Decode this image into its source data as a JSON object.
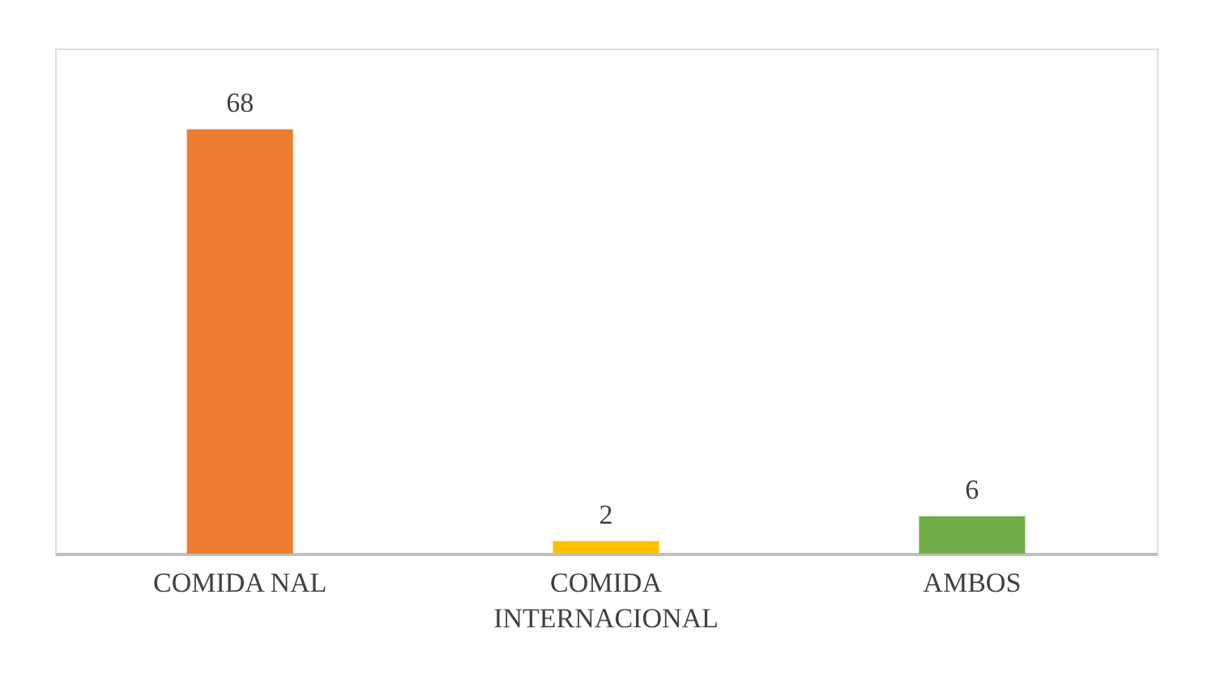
{
  "chart_data": {
    "type": "bar",
    "categories": [
      "COMIDA NAL",
      "COMIDA INTERNACIONAL",
      "AMBOS"
    ],
    "values": [
      68,
      2,
      6
    ],
    "colors": [
      "#ed7d31",
      "#ffc000",
      "#70ad47"
    ],
    "data_labels": true
  }
}
